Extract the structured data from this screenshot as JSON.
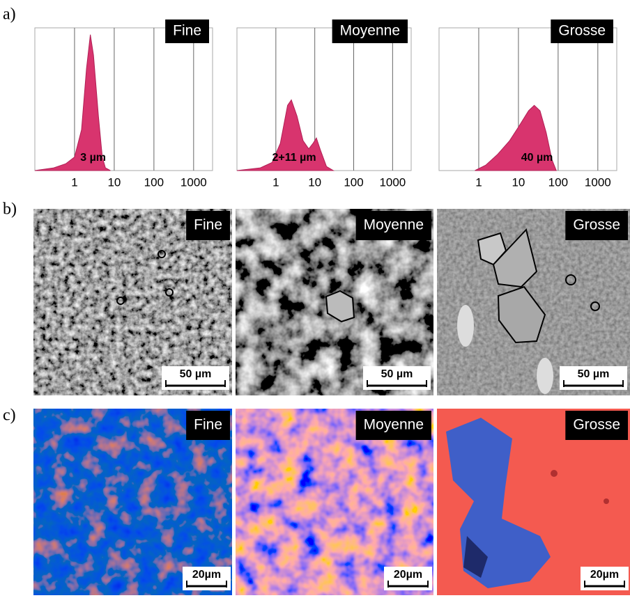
{
  "panel_labels": [
    "a)",
    "b)",
    "c)"
  ],
  "chart_data": [
    {
      "type": "area",
      "label": "Fine",
      "annotation": "3 µm",
      "color": "#d8346e",
      "x": [
        0.1,
        0.3,
        0.6,
        1,
        1.5,
        2,
        2.5,
        3,
        4,
        5,
        6,
        8
      ],
      "values": [
        0,
        2,
        5,
        10,
        30,
        75,
        100,
        85,
        40,
        10,
        2,
        0
      ],
      "xlim": [
        0.1,
        3000
      ],
      "ylim": [
        0,
        105
      ],
      "xticks": [
        1,
        10,
        100,
        1000
      ],
      "log_x": true,
      "grid": true
    },
    {
      "type": "area",
      "label": "Moyenne",
      "annotation": "2+11 µm",
      "color": "#d8346e",
      "x": [
        0.1,
        0.4,
        0.8,
        1.3,
        2,
        2.5,
        3.5,
        5,
        7,
        9,
        11,
        14,
        20,
        30
      ],
      "values": [
        0,
        2,
        6,
        20,
        48,
        52,
        40,
        22,
        16,
        20,
        24,
        15,
        3,
        0
      ],
      "xlim": [
        0.1,
        3000
      ],
      "ylim": [
        0,
        105
      ],
      "xticks": [
        1,
        10,
        100,
        1000
      ],
      "log_x": true,
      "grid": true
    },
    {
      "type": "area",
      "label": "Grosse",
      "annotation": "40 µm",
      "color": "#d8346e",
      "x": [
        0.8,
        1.5,
        3,
        6,
        10,
        18,
        25,
        35,
        50,
        70,
        90
      ],
      "values": [
        0,
        4,
        12,
        22,
        32,
        44,
        48,
        44,
        28,
        8,
        0
      ],
      "xlim": [
        0.1,
        3000
      ],
      "ylim": [
        0,
        105
      ],
      "xticks": [
        1,
        10,
        100,
        1000
      ],
      "log_x": true,
      "grid": true
    }
  ],
  "micrographs": [
    {
      "label": "Fine",
      "scale_bar": "50 µm"
    },
    {
      "label": "Moyenne",
      "scale_bar": "50 µm"
    },
    {
      "label": "Grosse",
      "scale_bar": "50 µm"
    }
  ],
  "maps": [
    {
      "label": "Fine",
      "scale_bar": "20µm"
    },
    {
      "label": "Moyenne",
      "scale_bar": "20µm"
    },
    {
      "label": "Grosse",
      "scale_bar": "20µm"
    }
  ]
}
